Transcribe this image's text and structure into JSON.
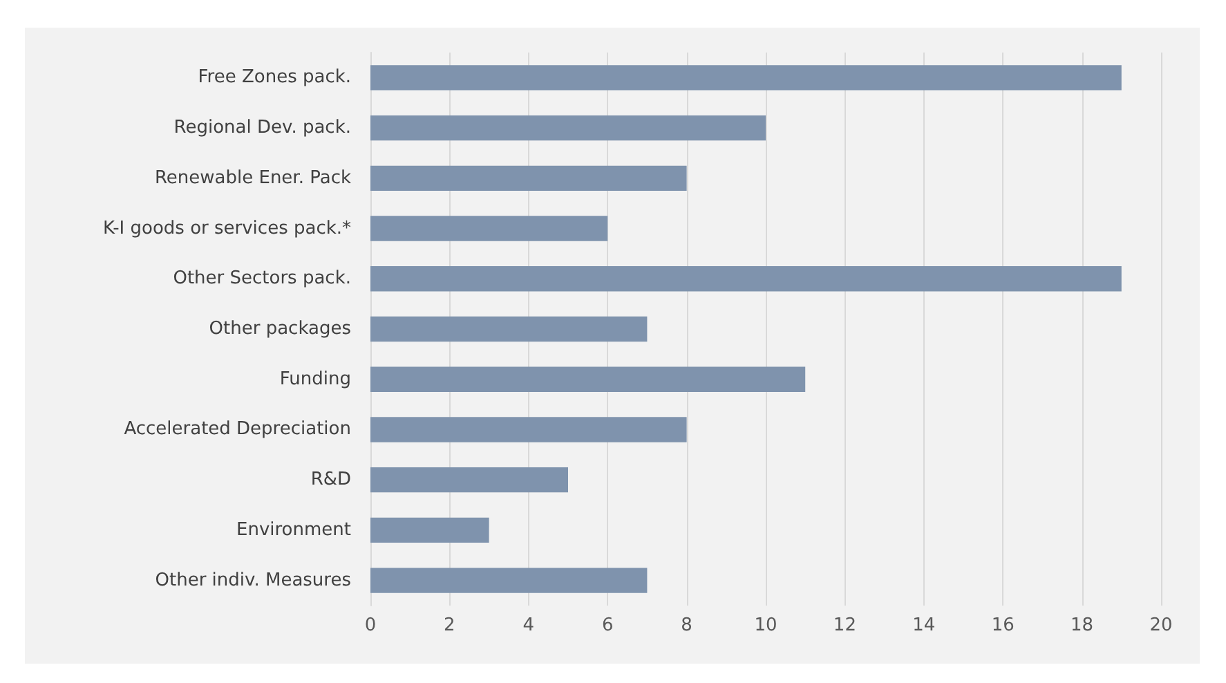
{
  "chart_data": {
    "type": "bar",
    "orientation": "horizontal",
    "categories": [
      "Free Zones pack.",
      "Regional Dev. pack.",
      "Renewable Ener. Pack",
      "K-I goods or services pack.*",
      "Other Sectors pack.",
      "Other packages",
      "Funding",
      "Accelerated Depreciation",
      "R&D",
      "Environment",
      "Other indiv. Measures"
    ],
    "values": [
      19,
      10,
      8,
      6,
      19,
      7,
      11,
      8,
      5,
      3,
      7
    ],
    "color": "#7f93ad",
    "xlim": [
      0,
      20
    ],
    "xticks": [
      0,
      2,
      4,
      6,
      8,
      10,
      12,
      14,
      16,
      18,
      20
    ],
    "grid": "x"
  }
}
